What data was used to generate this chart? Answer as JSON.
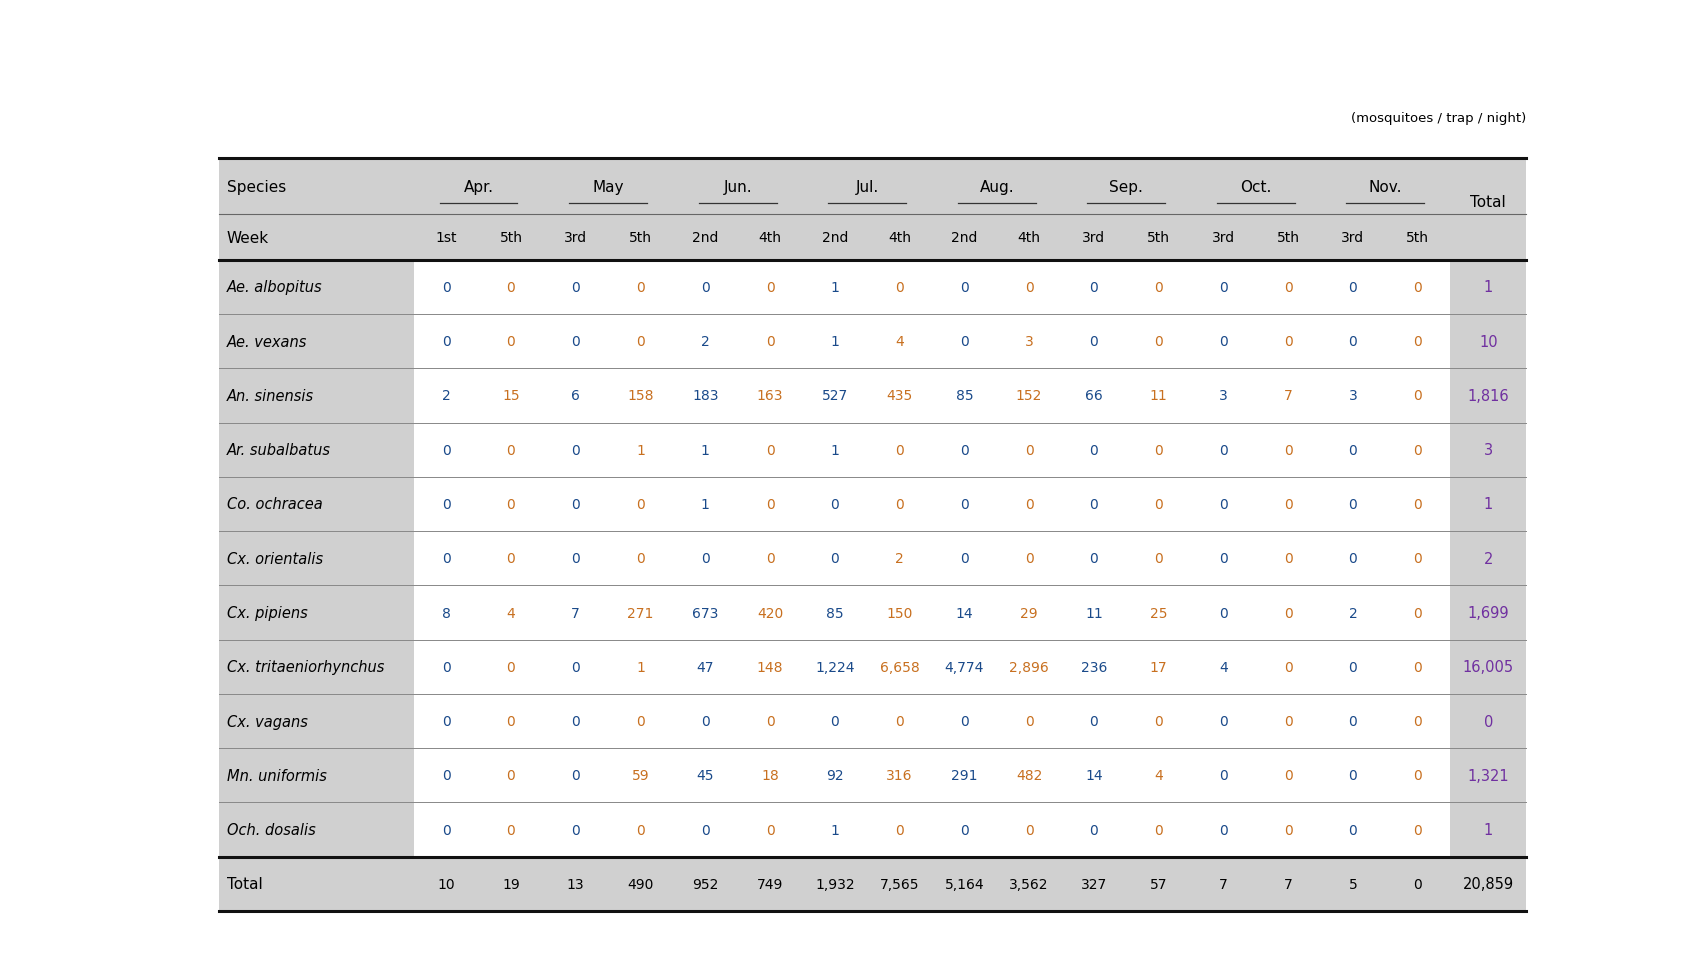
{
  "unit_label": "(mosquitoes / trap / night)",
  "species": [
    "Ae. albopitus",
    "Ae. vexans",
    "An. sinensis",
    "Ar. subalbatus",
    "Co. ochracea",
    "Cx. orientalis",
    "Cx. pipiens",
    "Cx. tritaeniorhynchus",
    "Cx. vagans",
    "Mn. uniformis",
    "Och. dosalis"
  ],
  "week_labels": [
    "1st",
    "5th",
    "3rd",
    "5th",
    "2nd",
    "4th",
    "2nd",
    "4th",
    "2nd",
    "4th",
    "3rd",
    "5th",
    "3rd",
    "5th",
    "3rd",
    "5th"
  ],
  "month_labels": [
    "Apr.",
    "May",
    "Jun.",
    "Jul.",
    "Aug.",
    "Sep.",
    "Oct.",
    "Nov."
  ],
  "data": [
    [
      0,
      0,
      0,
      0,
      0,
      0,
      1,
      0,
      0,
      0,
      0,
      0,
      0,
      0,
      0,
      0
    ],
    [
      0,
      0,
      0,
      0,
      2,
      0,
      1,
      4,
      0,
      3,
      0,
      0,
      0,
      0,
      0,
      0
    ],
    [
      2,
      15,
      6,
      158,
      183,
      163,
      527,
      435,
      85,
      152,
      66,
      11,
      3,
      7,
      3,
      0
    ],
    [
      0,
      0,
      0,
      1,
      1,
      0,
      1,
      0,
      0,
      0,
      0,
      0,
      0,
      0,
      0,
      0
    ],
    [
      0,
      0,
      0,
      0,
      1,
      0,
      0,
      0,
      0,
      0,
      0,
      0,
      0,
      0,
      0,
      0
    ],
    [
      0,
      0,
      0,
      0,
      0,
      0,
      0,
      2,
      0,
      0,
      0,
      0,
      0,
      0,
      0,
      0
    ],
    [
      8,
      4,
      7,
      271,
      673,
      420,
      85,
      150,
      14,
      29,
      11,
      25,
      0,
      0,
      2,
      0
    ],
    [
      0,
      0,
      0,
      1,
      47,
      148,
      1224,
      6658,
      4774,
      2896,
      236,
      17,
      4,
      0,
      0,
      0
    ],
    [
      0,
      0,
      0,
      0,
      0,
      0,
      0,
      0,
      0,
      0,
      0,
      0,
      0,
      0,
      0,
      0
    ],
    [
      0,
      0,
      0,
      59,
      45,
      18,
      92,
      316,
      291,
      482,
      14,
      4,
      0,
      0,
      0,
      0
    ],
    [
      0,
      0,
      0,
      0,
      0,
      0,
      1,
      0,
      0,
      0,
      0,
      0,
      0,
      0,
      0,
      0
    ]
  ],
  "totals": [
    "1",
    "10",
    "1,816",
    "3",
    "1",
    "2",
    "1,699",
    "16,005",
    "0",
    "1,321",
    "1"
  ],
  "total_row": [
    10,
    19,
    13,
    490,
    952,
    749,
    1932,
    7565,
    5164,
    3562,
    327,
    57,
    7,
    7,
    5,
    0
  ],
  "total_grand": "20,859",
  "bg_gray": "#d0d0d0",
  "bg_white": "#ffffff",
  "text_blue": "#1a4a8a",
  "text_orange": "#c87020",
  "text_purple": "#7030a0",
  "text_black": "#000000",
  "figsize": [
    16.99,
    9.79
  ],
  "dpi": 100
}
